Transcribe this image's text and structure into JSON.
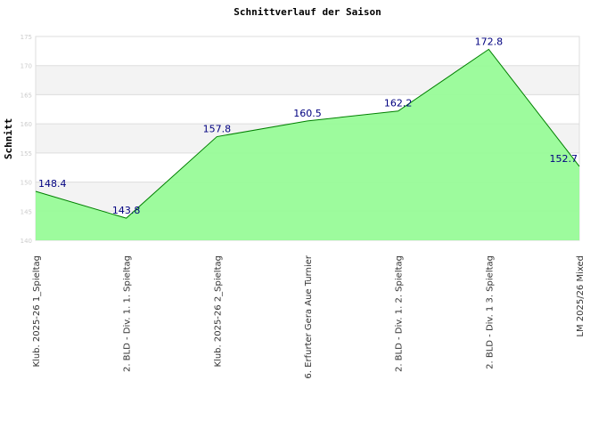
{
  "chart_data": {
    "type": "area",
    "title": "Schnittverlauf der Saison",
    "xlabel": "",
    "ylabel": "Schnitt",
    "ylim": [
      140,
      175
    ],
    "yticks": [
      140,
      145,
      150,
      155,
      160,
      165,
      170,
      175
    ],
    "grid": true,
    "categories": [
      "Klub. 2025-26  1_Spieltag",
      "2. BLD - Div. 1. 1. Spieltag",
      "Klub. 2025-26  2_Spieltag",
      "6. Erfurter Gera Aue Turnier",
      "2. BLD - Div. 1. 2. Spieltag",
      "2. BLD - Div. 1  3. Spieltag",
      "LM 2025/26 Mixed"
    ],
    "values": [
      148.4,
      143.8,
      157.8,
      160.5,
      162.2,
      172.8,
      152.7
    ],
    "data_labels": [
      "148.4",
      "143.8",
      "157.8",
      "160.5",
      "162.2",
      "172.8",
      "152.7"
    ],
    "colors": {
      "fill": "#98fb98",
      "line": "#008000",
      "label": "#000080",
      "band": "#f3f3f3"
    }
  }
}
